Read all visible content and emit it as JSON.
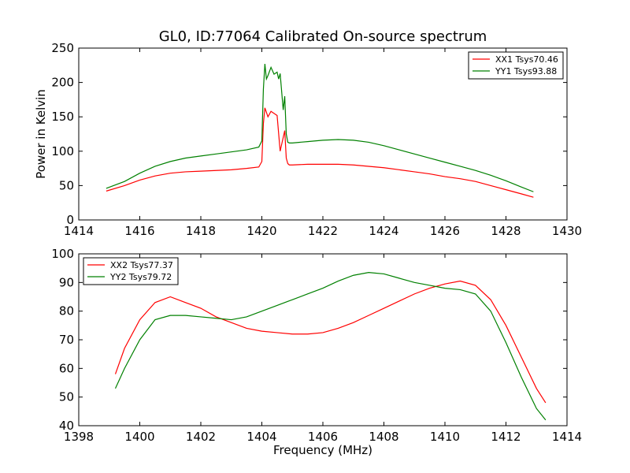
{
  "figure": {
    "title": "GL0, ID:77064 Calibrated On-source spectrum"
  },
  "colors": {
    "xx": "#ff0000",
    "yy": "#008000"
  },
  "chart_data": [
    {
      "type": "line",
      "title": "GL0, ID:77064 Calibrated On-source spectrum",
      "xlabel": "",
      "ylabel": "Power in Kelvin",
      "xlim": [
        1414,
        1430
      ],
      "ylim": [
        0,
        250
      ],
      "xticks": [
        1414,
        1416,
        1418,
        1420,
        1422,
        1424,
        1426,
        1428,
        1430
      ],
      "yticks": [
        0,
        50,
        100,
        150,
        200,
        250
      ],
      "legend_position": "top-right",
      "series": [
        {
          "name": "XX1 Tsys70.46",
          "color": "#ff0000",
          "x": [
            1414.9,
            1415.5,
            1416,
            1416.5,
            1417,
            1417.5,
            1418,
            1418.5,
            1419,
            1419.5,
            1419.9,
            1420.0,
            1420.05,
            1420.1,
            1420.2,
            1420.3,
            1420.4,
            1420.5,
            1420.6,
            1420.7,
            1420.75,
            1420.8,
            1420.85,
            1420.9,
            1421.0,
            1421.5,
            1422,
            1422.5,
            1423,
            1423.5,
            1424,
            1424.5,
            1425,
            1425.5,
            1426,
            1426.5,
            1427,
            1427.5,
            1428,
            1428.5,
            1428.9
          ],
          "y": [
            42,
            50,
            58,
            64,
            68,
            70,
            71,
            72,
            73,
            75,
            77,
            85,
            140,
            163,
            150,
            158,
            155,
            152,
            100,
            120,
            130,
            90,
            82,
            80,
            80,
            81,
            81,
            81,
            80,
            78,
            76,
            73,
            70,
            67,
            63,
            60,
            56,
            50,
            44,
            38,
            33
          ]
        },
        {
          "name": "YY1 Tsys93.88",
          "color": "#008000",
          "x": [
            1414.9,
            1415.5,
            1416,
            1416.5,
            1417,
            1417.5,
            1418,
            1418.5,
            1419,
            1419.5,
            1419.9,
            1420.0,
            1420.05,
            1420.1,
            1420.15,
            1420.2,
            1420.3,
            1420.4,
            1420.5,
            1420.55,
            1420.6,
            1420.7,
            1420.75,
            1420.8,
            1420.85,
            1420.9,
            1421.0,
            1421.5,
            1422,
            1422.5,
            1423,
            1423.5,
            1424,
            1424.5,
            1425,
            1425.5,
            1426,
            1426.5,
            1427,
            1427.5,
            1428,
            1428.5,
            1428.9
          ],
          "y": [
            46,
            56,
            68,
            78,
            85,
            90,
            93,
            96,
            99,
            102,
            106,
            115,
            190,
            227,
            205,
            210,
            222,
            212,
            215,
            205,
            213,
            160,
            180,
            125,
            113,
            112,
            112,
            114,
            116,
            117,
            116,
            113,
            108,
            102,
            96,
            90,
            84,
            78,
            72,
            65,
            57,
            48,
            41
          ]
        }
      ]
    },
    {
      "type": "line",
      "title": "",
      "xlabel": "Frequency (MHz)",
      "ylabel": "",
      "xlim": [
        1398,
        1414
      ],
      "ylim": [
        40,
        100
      ],
      "xticks": [
        1398,
        1400,
        1402,
        1404,
        1406,
        1408,
        1410,
        1412,
        1414
      ],
      "yticks": [
        40,
        50,
        60,
        70,
        80,
        90,
        100
      ],
      "legend_position": "top-left",
      "series": [
        {
          "name": "XX2 Tsys77.37",
          "color": "#ff0000",
          "x": [
            1399.2,
            1399.5,
            1400,
            1400.5,
            1401,
            1401.5,
            1402,
            1402.5,
            1403,
            1403.5,
            1404,
            1404.5,
            1405,
            1405.5,
            1406,
            1406.5,
            1407,
            1407.5,
            1408,
            1408.5,
            1409,
            1409.5,
            1410,
            1410.5,
            1411,
            1411.5,
            1412,
            1412.5,
            1413,
            1413.3
          ],
          "y": [
            58,
            67,
            77,
            83,
            85,
            83,
            81,
            78,
            76,
            74,
            73,
            72.5,
            72,
            72,
            72.5,
            74,
            76,
            78.5,
            81,
            83.5,
            86,
            88,
            89.5,
            90.5,
            89,
            84,
            75,
            64,
            53,
            48
          ]
        },
        {
          "name": "YY2 Tsys79.72",
          "color": "#008000",
          "x": [
            1399.2,
            1399.5,
            1400,
            1400.5,
            1401,
            1401.5,
            1402,
            1402.5,
            1403,
            1403.5,
            1404,
            1404.5,
            1405,
            1405.5,
            1406,
            1406.5,
            1407,
            1407.5,
            1408,
            1408.5,
            1409,
            1409.5,
            1410,
            1410.5,
            1411,
            1411.5,
            1412,
            1412.5,
            1413,
            1413.3
          ],
          "y": [
            53,
            60,
            70,
            77,
            78.5,
            78.5,
            78,
            77.5,
            77,
            78,
            80,
            82,
            84,
            86,
            88,
            90.5,
            92.5,
            93.5,
            93,
            91.5,
            90,
            89,
            88,
            87.5,
            86,
            80,
            69,
            57,
            46,
            42
          ]
        }
      ]
    }
  ]
}
